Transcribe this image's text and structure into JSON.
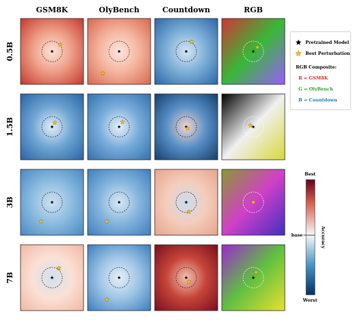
{
  "columns": [
    "GSM8K",
    "OlyBench",
    "Countdown",
    "RGB"
  ],
  "rows": [
    "0.5B",
    "1.5B",
    "3B",
    "7B"
  ],
  "legend": {
    "items": [
      "Pretrained Model",
      "Best Perturbation"
    ],
    "composite_title": "RGB Composite:",
    "channels": [
      "R = GSM8K",
      "G = OlyBench",
      "B = Countdown"
    ]
  },
  "colorbar": {
    "title": "Accuracy",
    "top": "Best",
    "middle": "base",
    "bottom": "Worst"
  }
}
